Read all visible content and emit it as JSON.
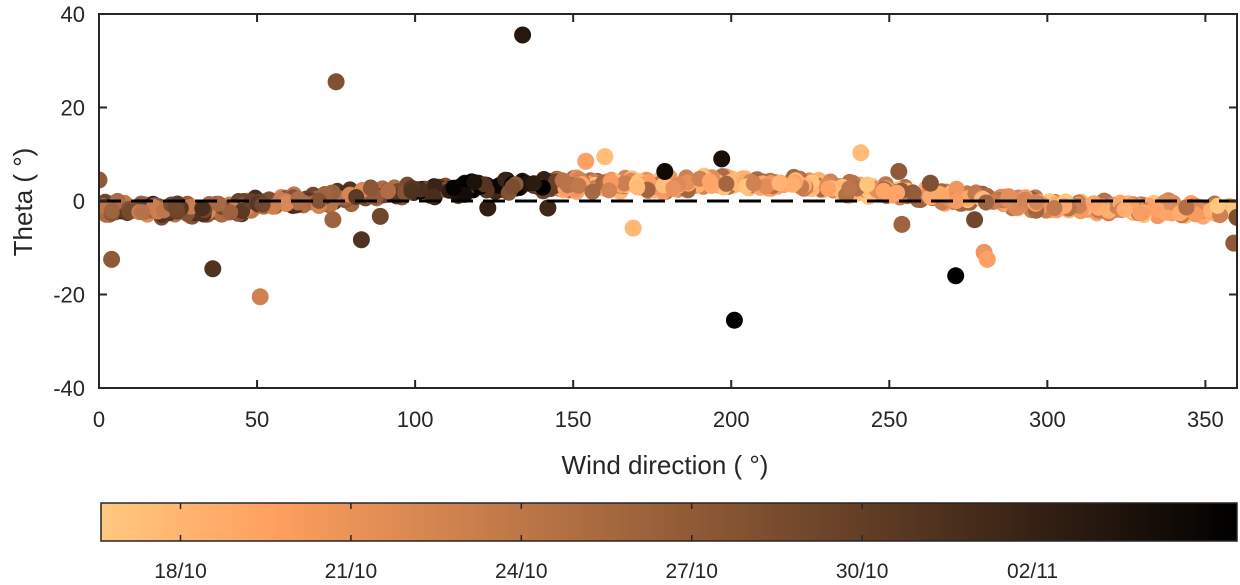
{
  "chart_data": {
    "type": "scatter",
    "title": "",
    "xlabel": "Wind direction (    °)",
    "ylabel": "Theta (  °)",
    "xlim": [
      0,
      360
    ],
    "ylim": [
      -40,
      40
    ],
    "x_ticks": [
      0,
      50,
      100,
      150,
      200,
      250,
      300,
      350
    ],
    "y_ticks": [
      -40,
      -20,
      0,
      20,
      40
    ],
    "x_tick_labels": [
      "0",
      "50",
      "100",
      "150",
      "200",
      "250",
      "300",
      "350"
    ],
    "y_tick_labels": [
      "-40",
      "-20",
      "0",
      "20",
      "40"
    ],
    "reference_line": {
      "y": 0,
      "style": "dashed",
      "color": "#000000"
    },
    "marker_color_encoding": "date",
    "colorbar": {
      "orientation": "horizontal",
      "colormap": "copper-reversed",
      "color_start": "#ffc880",
      "color_end": "#000000",
      "tick_labels": [
        "18/10",
        "21/10",
        "24/10",
        "27/10",
        "30/10",
        "02/11"
      ],
      "tick_positions": [
        0.07,
        0.22,
        0.37,
        0.52,
        0.67,
        0.82
      ]
    },
    "outliers": [
      {
        "x": 134,
        "y": 35.5,
        "c": 0.88
      },
      {
        "x": 75,
        "y": 25.5,
        "c": 0.6
      },
      {
        "x": 197,
        "y": 9,
        "c": 0.92
      },
      {
        "x": 160,
        "y": 9.5,
        "c": 0.05
      },
      {
        "x": 241,
        "y": 10.3,
        "c": 0.05
      },
      {
        "x": 154,
        "y": 8.5,
        "c": 0.2
      },
      {
        "x": 253,
        "y": 6.3,
        "c": 0.55
      },
      {
        "x": 0,
        "y": 4.5,
        "c": 0.55
      },
      {
        "x": 263,
        "y": 3.8,
        "c": 0.6
      },
      {
        "x": 179,
        "y": 6.3,
        "c": 0.95
      },
      {
        "x": 4,
        "y": -12.5,
        "c": 0.55
      },
      {
        "x": 36,
        "y": -14.5,
        "c": 0.75
      },
      {
        "x": 51,
        "y": -20.5,
        "c": 0.35
      },
      {
        "x": 83,
        "y": -8.3,
        "c": 0.75
      },
      {
        "x": 74,
        "y": -4,
        "c": 0.5
      },
      {
        "x": 89,
        "y": -3.3,
        "c": 0.65
      },
      {
        "x": 169,
        "y": -5.8,
        "c": 0.08
      },
      {
        "x": 201,
        "y": -25.5,
        "c": 1.0
      },
      {
        "x": 271,
        "y": -16,
        "c": 1.0
      },
      {
        "x": 280,
        "y": -11,
        "c": 0.25
      },
      {
        "x": 281,
        "y": -12.5,
        "c": 0.2
      },
      {
        "x": 277,
        "y": -4,
        "c": 0.65
      },
      {
        "x": 254,
        "y": -5,
        "c": 0.5
      },
      {
        "x": 359,
        "y": -9,
        "c": 0.55
      },
      {
        "x": 360,
        "y": -3.5,
        "c": 0.6
      },
      {
        "x": 142,
        "y": -1.5,
        "c": 0.8
      },
      {
        "x": 123,
        "y": -1.5,
        "c": 0.85
      }
    ],
    "cluster_trend": {
      "description": "dense band of points following theta(wd)",
      "x": [
        0,
        20,
        40,
        60,
        80,
        100,
        120,
        140,
        160,
        180,
        200,
        220,
        240,
        260,
        280,
        300,
        320,
        340,
        360
      ],
      "y": [
        -1.5,
        -2,
        -1.5,
        0,
        1,
        2,
        3,
        3.5,
        3.5,
        3.5,
        4,
        3.5,
        2.5,
        1.5,
        0.5,
        -1,
        -1.5,
        -1.5,
        -2
      ],
      "spread": 1.8
    }
  }
}
